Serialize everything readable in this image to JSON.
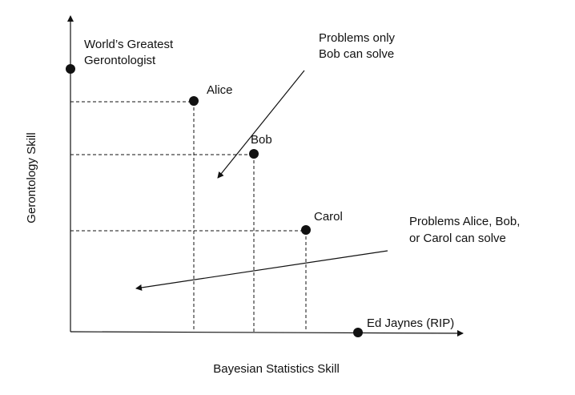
{
  "axes": {
    "x_label": "Bayesian Statistics Skill",
    "y_label": "Gerontology Skill"
  },
  "points": [
    {
      "id": "gerontologist",
      "label_lines": [
        "World’s Greatest",
        "Gerontologist"
      ]
    },
    {
      "id": "alice",
      "label_lines": [
        "Alice"
      ]
    },
    {
      "id": "bob",
      "label_lines": [
        "Bob"
      ]
    },
    {
      "id": "carol",
      "label_lines": [
        "Carol"
      ]
    },
    {
      "id": "jaynes",
      "label_lines": [
        "Ed Jaynes (RIP)"
      ]
    }
  ],
  "annotations": [
    {
      "id": "bob-only",
      "lines": [
        "Problems only",
        "Bob can solve"
      ]
    },
    {
      "id": "anyone",
      "lines": [
        "Problems Alice, Bob,",
        "or Carol can solve"
      ]
    }
  ],
  "colors": {
    "ink": "#111111",
    "background": "#ffffff"
  }
}
